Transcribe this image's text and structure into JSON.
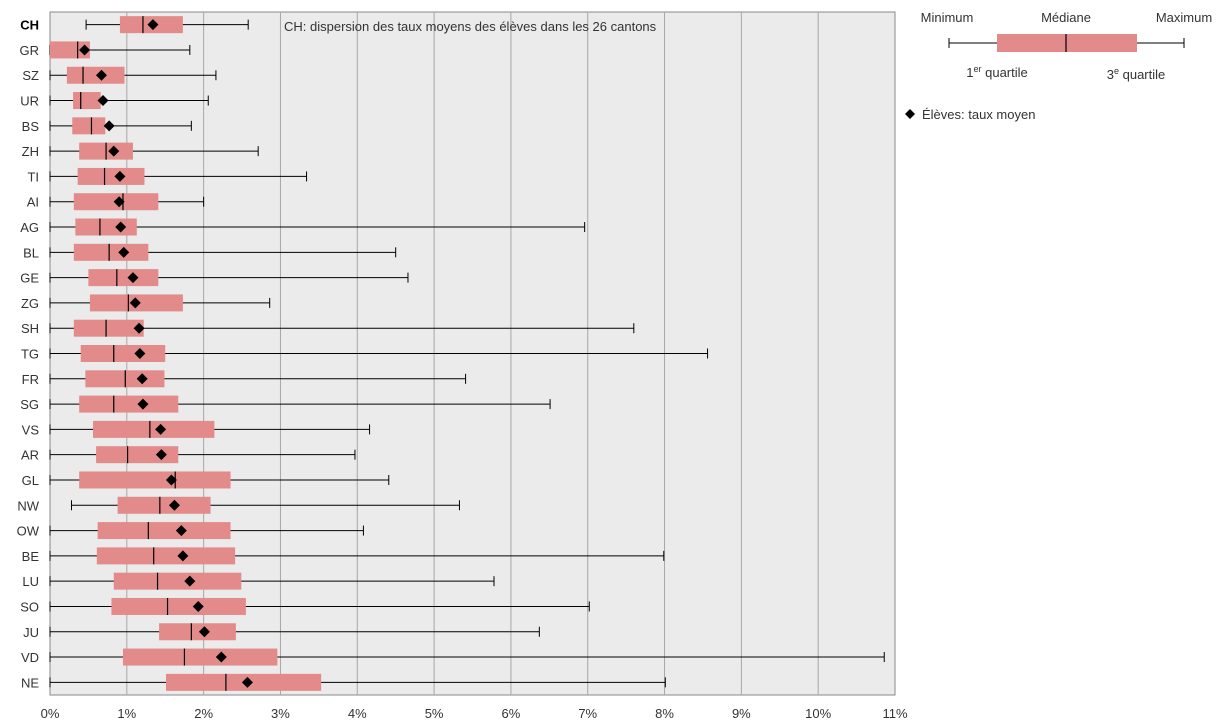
{
  "chart_data": {
    "type": "boxplot",
    "orientation": "horizontal",
    "annotation": "CH: dispersion des taux moyens des élèves dans les 26 cantons",
    "x_ticks": [
      "0%",
      "1%",
      "2%",
      "3%",
      "4%",
      "5%",
      "6%",
      "7%",
      "8%",
      "9%",
      "10%",
      "11%"
    ],
    "xlim": [
      0,
      11
    ],
    "grid": "vertical",
    "box_color": "#e38b8b",
    "marker_color": "#000000",
    "categories": [
      "CH",
      "GR",
      "SZ",
      "UR",
      "BS",
      "ZH",
      "TI",
      "AI",
      "AG",
      "BL",
      "GE",
      "ZG",
      "SH",
      "TG",
      "FR",
      "SG",
      "VS",
      "AR",
      "GL",
      "NW",
      "OW",
      "BE",
      "LU",
      "SO",
      "JU",
      "VD",
      "NE"
    ],
    "bold_categories": [
      "CH"
    ],
    "stats": [
      {
        "min": 0.47,
        "q1": 0.91,
        "median": 1.21,
        "q3": 1.73,
        "max": 2.58,
        "mean": 1.34
      },
      {
        "min": 0.0,
        "q1": 0.0,
        "median": 0.36,
        "q3": 0.52,
        "max": 1.82,
        "mean": 0.45
      },
      {
        "min": 0.0,
        "q1": 0.22,
        "median": 0.43,
        "q3": 0.97,
        "max": 2.16,
        "mean": 0.67
      },
      {
        "min": 0.0,
        "q1": 0.3,
        "median": 0.4,
        "q3": 0.66,
        "max": 2.06,
        "mean": 0.69
      },
      {
        "min": 0.0,
        "q1": 0.29,
        "median": 0.54,
        "q3": 0.72,
        "max": 1.84,
        "mean": 0.77
      },
      {
        "min": 0.0,
        "q1": 0.38,
        "median": 0.73,
        "q3": 1.08,
        "max": 2.71,
        "mean": 0.83
      },
      {
        "min": 0.0,
        "q1": 0.36,
        "median": 0.71,
        "q3": 1.23,
        "max": 3.34,
        "mean": 0.91
      },
      {
        "min": 0.0,
        "q1": 0.31,
        "median": 0.95,
        "q3": 1.41,
        "max": 2.0,
        "mean": 0.9
      },
      {
        "min": 0.0,
        "q1": 0.33,
        "median": 0.65,
        "q3": 1.13,
        "max": 6.96,
        "mean": 0.92
      },
      {
        "min": 0.0,
        "q1": 0.31,
        "median": 0.77,
        "q3": 1.28,
        "max": 4.5,
        "mean": 0.96
      },
      {
        "min": 0.0,
        "q1": 0.5,
        "median": 0.87,
        "q3": 1.41,
        "max": 4.66,
        "mean": 1.08
      },
      {
        "min": 0.0,
        "q1": 0.52,
        "median": 1.02,
        "q3": 1.73,
        "max": 2.86,
        "mean": 1.11
      },
      {
        "min": 0.0,
        "q1": 0.31,
        "median": 0.73,
        "q3": 1.22,
        "max": 7.6,
        "mean": 1.16
      },
      {
        "min": 0.0,
        "q1": 0.4,
        "median": 0.83,
        "q3": 1.5,
        "max": 8.56,
        "mean": 1.17
      },
      {
        "min": 0.0,
        "q1": 0.46,
        "median": 0.98,
        "q3": 1.49,
        "max": 5.41,
        "mean": 1.2
      },
      {
        "min": 0.0,
        "q1": 0.38,
        "median": 0.83,
        "q3": 1.67,
        "max": 6.51,
        "mean": 1.21
      },
      {
        "min": 0.0,
        "q1": 0.56,
        "median": 1.3,
        "q3": 2.14,
        "max": 4.16,
        "mean": 1.44
      },
      {
        "min": 0.0,
        "q1": 0.6,
        "median": 1.01,
        "q3": 1.67,
        "max": 3.97,
        "mean": 1.45
      },
      {
        "min": 0.0,
        "q1": 0.38,
        "median": 1.63,
        "q3": 2.35,
        "max": 4.41,
        "mean": 1.58
      },
      {
        "min": 0.28,
        "q1": 0.88,
        "median": 1.43,
        "q3": 2.09,
        "max": 5.33,
        "mean": 1.62
      },
      {
        "min": 0.0,
        "q1": 0.62,
        "median": 1.28,
        "q3": 2.35,
        "max": 4.08,
        "mean": 1.71
      },
      {
        "min": 0.0,
        "q1": 0.61,
        "median": 1.35,
        "q3": 2.41,
        "max": 7.99,
        "mean": 1.73
      },
      {
        "min": 0.0,
        "q1": 0.83,
        "median": 1.4,
        "q3": 2.49,
        "max": 5.78,
        "mean": 1.82
      },
      {
        "min": 0.0,
        "q1": 0.8,
        "median": 1.53,
        "q3": 2.55,
        "max": 7.02,
        "mean": 1.93
      },
      {
        "min": 0.0,
        "q1": 1.42,
        "median": 1.84,
        "q3": 2.42,
        "max": 6.37,
        "mean": 2.01
      },
      {
        "min": 0.0,
        "q1": 0.95,
        "median": 1.75,
        "q3": 2.96,
        "max": 10.86,
        "mean": 2.23
      },
      {
        "min": 0.0,
        "q1": 1.51,
        "median": 2.29,
        "q3": 3.53,
        "max": 8.01,
        "mean": 2.57
      }
    ],
    "legend": {
      "minimum": "Minimum",
      "median": "Médiane",
      "maximum": "Maximum",
      "q1_prefix": "1",
      "q1_sup": "er",
      "q1_suffix": " quartile",
      "q3_prefix": "3",
      "q3_sup": "e",
      "q3_suffix": " quartile",
      "mean_label": "Élèves: taux moyen"
    }
  }
}
